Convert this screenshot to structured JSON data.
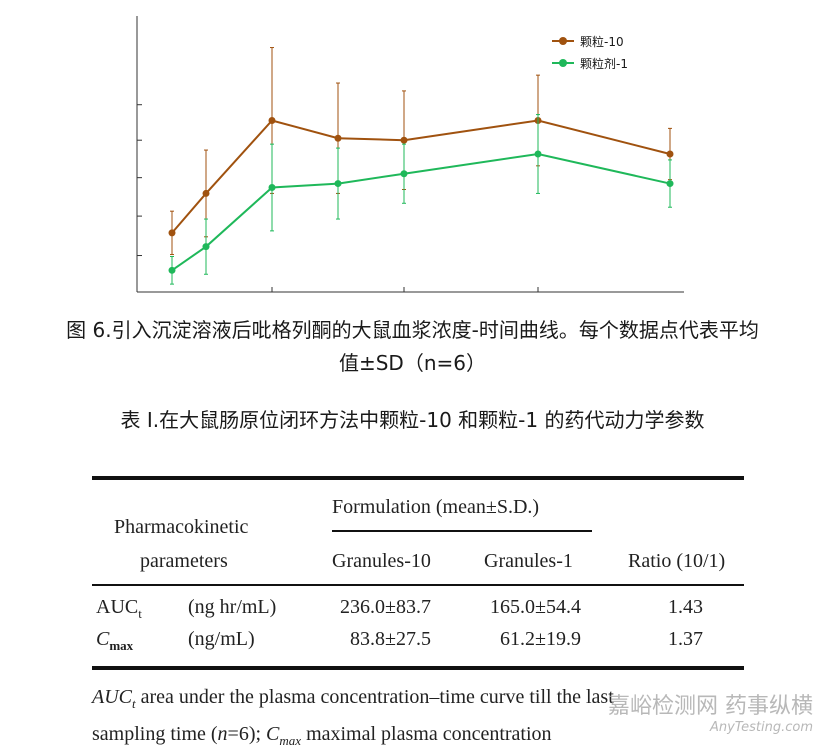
{
  "chart_data": {
    "type": "line",
    "x": [
      0.5,
      1,
      2,
      3,
      4,
      6,
      8
    ],
    "ylim": [
      0,
      140
    ],
    "xlim": [
      0,
      8
    ],
    "series": [
      {
        "name": "颗粒-10",
        "color": "#a0520f",
        "values": [
          30,
          50,
          87,
          78,
          77,
          87,
          70
        ],
        "sd": [
          11,
          22,
          37,
          28,
          25,
          23,
          13
        ]
      },
      {
        "name": "颗粒剂-1",
        "color": "#1fb85a",
        "values": [
          11,
          23,
          53,
          55,
          60,
          70,
          55
        ],
        "sd": [
          7,
          14,
          22,
          18,
          15,
          20,
          12
        ]
      }
    ]
  },
  "figure_caption": {
    "line1": "图 6.引入沉淀溶液后吡格列酮的大鼠血浆浓度-时间曲线。每个数据点代表平均",
    "line2": "值±SD（n=6）"
  },
  "table_title": "表 I.在大鼠肠原位闭环方法中颗粒-10 和颗粒-1 的药代动力学参数",
  "table": {
    "param_header_1": "Pharmacokinetic",
    "param_header_2": "parameters",
    "formulation_header": "Formulation (mean±S.D.)",
    "col_granules10": "Granules-10",
    "col_granules1": "Granules-1",
    "col_ratio": "Ratio (10/1)",
    "rows": [
      {
        "param": "AUCt",
        "unit": "(ng hr/mL)",
        "g10": "236.0±83.7",
        "g1": "165.0±54.4",
        "ratio": "1.43"
      },
      {
        "param": "Cmax",
        "unit": "(ng/mL)",
        "g10": "83.8±27.5",
        "g1": "61.2±19.9",
        "ratio": "1.37"
      }
    ]
  },
  "footnote": {
    "line1": "AUCt area under the plasma concentration–time curve till the last",
    "line2": "sampling time (n=6); Cmax maximal plasma concentration"
  },
  "watermark": {
    "line1": "嘉峪检测网 药事纵横",
    "line2": "AnyTesting.com"
  }
}
